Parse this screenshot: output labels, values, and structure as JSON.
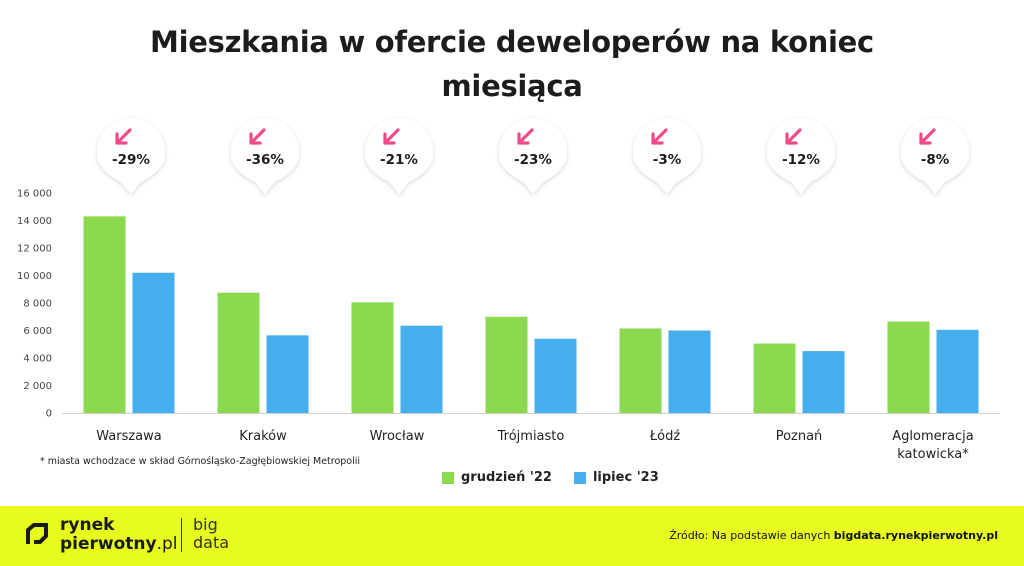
{
  "title": "Mieszkania w ofercie deweloperów na koniec miesiąca",
  "chart_data": {
    "type": "bar",
    "title": "Mieszkania w ofercie deweloperów na koniec miesiąca",
    "categories": [
      "Warszawa",
      "Kraków",
      "Wrocław",
      "Trójmiasto",
      "Łódź",
      "Poznań",
      "Aglomeracja katowicka*"
    ],
    "category_lines": [
      [
        "Warszawa"
      ],
      [
        "Kraków"
      ],
      [
        "Wrocław"
      ],
      [
        "Trójmiasto"
      ],
      [
        "Łódź"
      ],
      [
        "Poznań"
      ],
      [
        "Aglomeracja",
        "katowicka*"
      ]
    ],
    "series": [
      {
        "name": "grudzień '22",
        "color": "#8ad94e",
        "values": [
          14300,
          8750,
          8050,
          7000,
          6150,
          5050,
          6650
        ]
      },
      {
        "name": "lipiec '23",
        "color": "#46aeec",
        "values": [
          10200,
          5650,
          6350,
          5400,
          6000,
          4500,
          6050
        ]
      }
    ],
    "changes": [
      "-29%",
      "-36%",
      "-21%",
      "-23%",
      "-3%",
      "-12%",
      "-8%"
    ],
    "change_icon": "arrow-down-left-icon",
    "change_color": "#f04a8a",
    "ylim": [
      0,
      16000
    ],
    "yticks": [
      0,
      2000,
      4000,
      6000,
      8000,
      10000,
      12000,
      14000,
      16000
    ],
    "ytick_labels": [
      "0",
      "2 000",
      "4 000",
      "6 000",
      "8 000",
      "10 000",
      "12 000",
      "14 000",
      "16 000"
    ],
    "grid": false,
    "legend_position": "bottom-center"
  },
  "footnote": "* miasta wchodzace w skład Górnośląsko-Zagłębiowskiej Metropolii",
  "footer": {
    "background": "#e8fb1e",
    "logo_line1": "rynek",
    "logo_line2_bold": "pierwotny",
    "logo_line2_light": ".pl",
    "bigdata_line1": "big",
    "bigdata_line2": "data",
    "source_prefix": "Źródło: Na podstawie danych ",
    "source_link": "bigdata.rynekpierwotny.pl"
  }
}
